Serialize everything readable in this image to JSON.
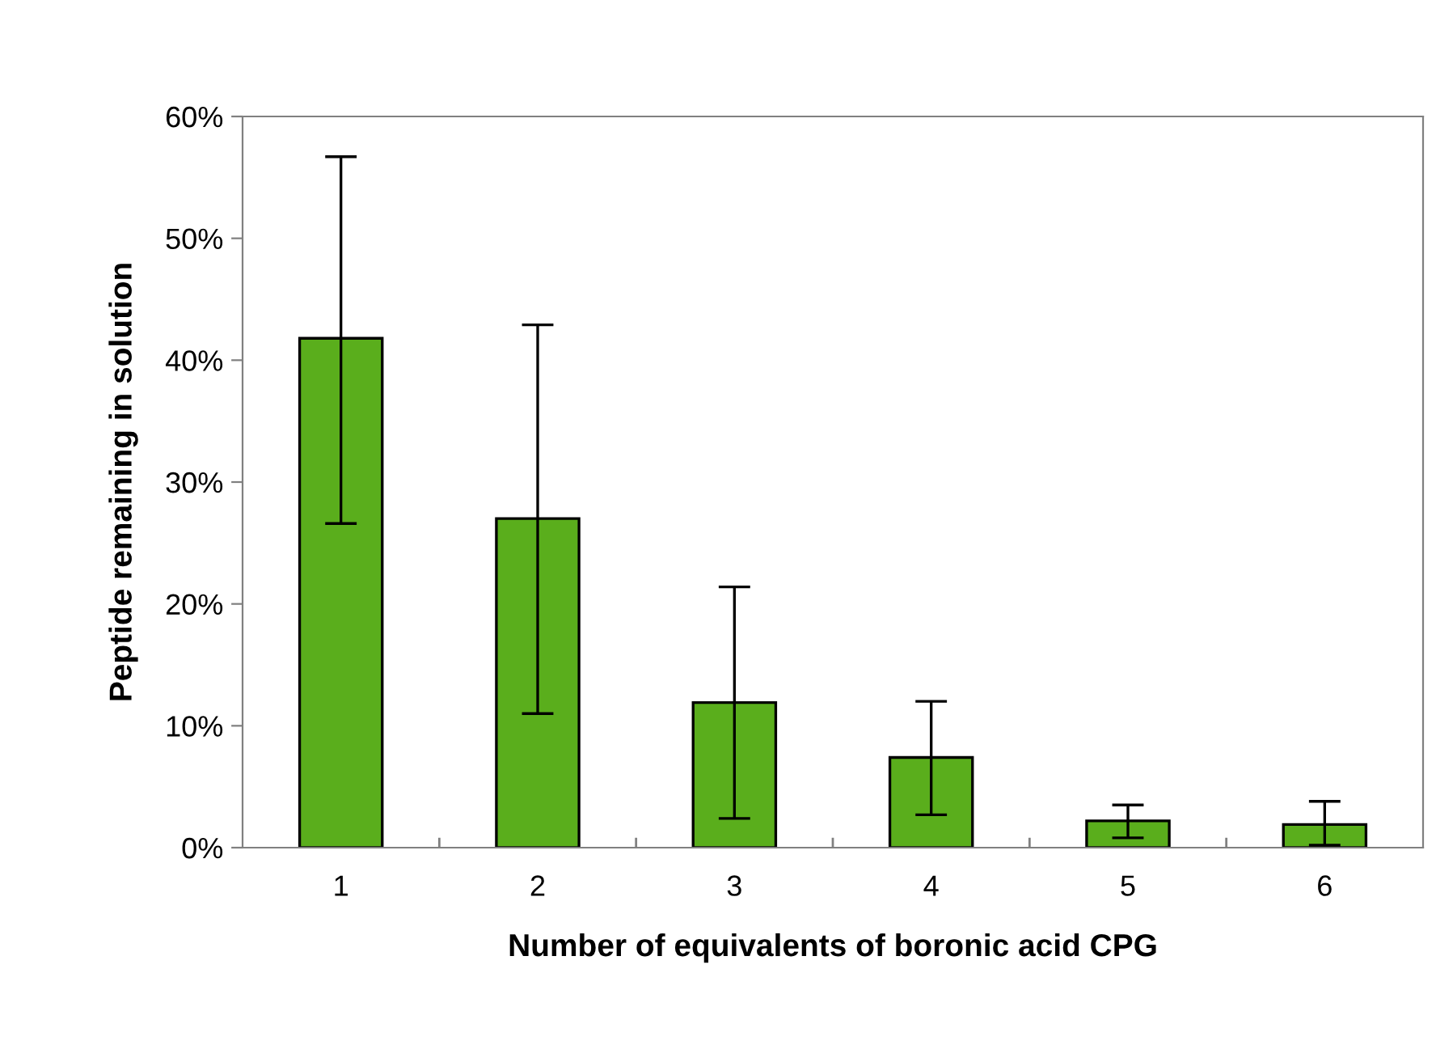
{
  "chart_data": {
    "type": "bar",
    "xlabel": "Number of equivalents of boronic acid CPG",
    "ylabel": "Peptide remaining in solution",
    "categories": [
      "1",
      "2",
      "3",
      "4",
      "5",
      "6"
    ],
    "values": [
      41.8,
      27.0,
      11.9,
      7.4,
      2.2,
      1.9
    ],
    "errors": [
      [
        26.6,
        56.7
      ],
      [
        11.0,
        42.9
      ],
      [
        2.4,
        21.4
      ],
      [
        2.7,
        12.0
      ],
      [
        0.8,
        3.5
      ],
      [
        0.2,
        3.8
      ]
    ],
    "color": "#5aae1c",
    "ylim": [
      0,
      60
    ],
    "yticks": [
      {
        "value": 0,
        "label": "0%"
      },
      {
        "value": 10,
        "label": "10%"
      },
      {
        "value": 20,
        "label": "20%"
      },
      {
        "value": 30,
        "label": "30%"
      },
      {
        "value": 40,
        "label": "40%"
      },
      {
        "value": 50,
        "label": "50%"
      },
      {
        "value": 60,
        "label": "60%"
      }
    ],
    "grid": false
  }
}
